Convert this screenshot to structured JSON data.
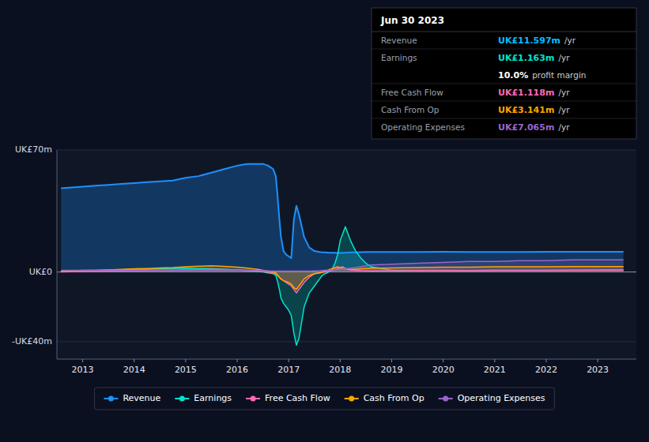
{
  "chart_data": {
    "type": "area",
    "x": [
      2012.58,
      2013.0,
      2013.25,
      2013.5,
      2013.75,
      2014.0,
      2014.25,
      2014.5,
      2014.75,
      2015.0,
      2015.25,
      2015.5,
      2015.75,
      2016.0,
      2016.1,
      2016.2,
      2016.3,
      2016.4,
      2016.5,
      2016.6,
      2016.7,
      2016.75,
      2016.78,
      2016.82,
      2016.85,
      2016.9,
      2016.95,
      2017.0,
      2017.05,
      2017.1,
      2017.15,
      2017.2,
      2017.3,
      2017.4,
      2017.5,
      2017.6,
      2017.65,
      2017.7,
      2017.75,
      2017.8,
      2017.85,
      2017.9,
      2017.95,
      2018.0,
      2018.05,
      2018.1,
      2018.15,
      2018.2,
      2018.3,
      2018.4,
      2018.5,
      2018.6,
      2019.0,
      2019.5,
      2020.0,
      2020.5,
      2021.0,
      2021.5,
      2022.0,
      2022.5,
      2023.0,
      2023.5
    ],
    "series": [
      {
        "name": "Revenue",
        "color": "#1e90ff",
        "values": [
          48,
          49,
          49.5,
          50,
          50.5,
          51,
          51.5,
          52,
          52.5,
          54,
          55,
          57,
          59,
          61,
          61.5,
          62,
          62,
          62,
          62,
          61,
          59,
          55,
          45,
          30,
          20,
          12,
          10,
          9,
          8,
          30,
          38,
          33,
          20,
          14,
          12,
          11.5,
          11.3,
          11.2,
          11.1,
          11.0,
          11.0,
          11.0,
          10.9,
          10.9,
          11.0,
          11.0,
          11.1,
          11.2,
          11.3,
          11.4,
          11.5,
          11.5,
          11.5,
          11.5,
          11.6,
          11.5,
          11.5,
          11.5,
          11.6,
          11.6,
          11.6,
          11.6
        ]
      },
      {
        "name": "Earnings",
        "color": "#00e5cc",
        "values": [
          0.5,
          1.0,
          1.0,
          1.2,
          1.3,
          1.5,
          1.5,
          1.8,
          2.0,
          2.2,
          2.0,
          1.8,
          1.5,
          1.2,
          1.0,
          0.8,
          0.5,
          0.2,
          0,
          -0.5,
          -1,
          -2,
          -5,
          -10,
          -15,
          -18,
          -20,
          -22,
          -25,
          -35,
          -42,
          -38,
          -20,
          -12,
          -8,
          -4,
          -2,
          -1,
          -0.5,
          0.5,
          2,
          5,
          10,
          18,
          22,
          26,
          22,
          18,
          12,
          8,
          5,
          3,
          1.0,
          1.0,
          1.0,
          0.8,
          1.0,
          1.0,
          1.0,
          1.1,
          1.1,
          1.2
        ]
      },
      {
        "name": "Free Cash Flow",
        "color": "#ff69b4",
        "values": [
          0,
          0.3,
          0.4,
          0.5,
          0.6,
          0.7,
          0.8,
          0.9,
          1.0,
          1.2,
          1.3,
          1.5,
          1.4,
          1.2,
          1.1,
          1.0,
          0.8,
          0.5,
          0.2,
          0,
          -0.5,
          -1,
          -2,
          -3,
          -4,
          -5,
          -6,
          -7,
          -8,
          -10,
          -12,
          -10,
          -6,
          -3,
          -1,
          -0.5,
          -0.2,
          0,
          0.3,
          0.5,
          1.0,
          1.5,
          2.0,
          2.5,
          3,
          2,
          1.5,
          1.2,
          1.0,
          0.8,
          0.7,
          0.6,
          0.7,
          0.8,
          0.8,
          0.8,
          0.9,
          1.0,
          1.0,
          1.0,
          1.1,
          1.1
        ]
      },
      {
        "name": "Cash From Op",
        "color": "#ffa500",
        "values": [
          0.5,
          0.8,
          1.0,
          1.2,
          1.5,
          1.8,
          2.0,
          2.3,
          2.5,
          3.0,
          3.3,
          3.5,
          3.2,
          2.8,
          2.5,
          2.2,
          1.8,
          1.5,
          1.0,
          0.5,
          0,
          -0.5,
          -1.5,
          -3,
          -4,
          -5,
          -5.5,
          -6,
          -7,
          -9,
          -10,
          -8,
          -4,
          -2,
          -1,
          -0.5,
          0,
          0.5,
          1,
          1.5,
          2,
          2.5,
          3,
          2.5,
          2,
          1.8,
          1.6,
          1.5,
          1.5,
          1.8,
          2.0,
          2.2,
          2.3,
          2.5,
          2.8,
          2.8,
          3.0,
          3.0,
          3.0,
          3.1,
          3.1,
          3.1
        ]
      },
      {
        "name": "Operating Expenses",
        "color": "#9966cc",
        "values": [
          1,
          1,
          1,
          1,
          1,
          1,
          1,
          1,
          1.1,
          1.2,
          1.2,
          1.2,
          1.2,
          1.1,
          1.0,
          1.0,
          0.9,
          0.8,
          0.7,
          0.6,
          0.5,
          0.5,
          0.5,
          0.5,
          0.5,
          0.5,
          0.5,
          0.5,
          0.5,
          0.5,
          0.5,
          0.5,
          0.5,
          0.5,
          0.6,
          0.7,
          0.8,
          0.9,
          1.0,
          1.1,
          1.2,
          1.3,
          1.4,
          1.5,
          1.6,
          1.8,
          2.0,
          2.2,
          2.5,
          3.0,
          3.5,
          4.0,
          4.5,
          5.0,
          5.5,
          6.0,
          6.0,
          6.5,
          6.5,
          7.0,
          7.0,
          7.0
        ]
      }
    ],
    "xlim": [
      2012.5,
      2023.75
    ],
    "xticks": [
      2013,
      2014,
      2015,
      2016,
      2017,
      2018,
      2019,
      2020,
      2021,
      2022,
      2023
    ],
    "ylim": [
      -50,
      70
    ],
    "yticks": [
      {
        "value": -40,
        "label": "-UK£40m"
      },
      {
        "value": 0,
        "label": "UK£0"
      },
      {
        "value": 70,
        "label": "UK£70m"
      }
    ],
    "grid": true,
    "legend": "bottom",
    "annotations": [
      {
        "text": "Jun 30 2023"
      },
      {
        "label": "Revenue",
        "text": "UK£11.597m",
        "suffix": "/yr",
        "color": "#00bfff"
      },
      {
        "label": "Earnings",
        "text": "UK£1.163m",
        "suffix": "/yr",
        "color": "#00e5cc"
      },
      {
        "text": "10.0%",
        "suffix": "profit margin",
        "color": "#ffffff"
      },
      {
        "label": "Free Cash Flow",
        "text": "UK£1.118m",
        "suffix": "/yr",
        "color": "#ff69b4"
      },
      {
        "label": "Cash From Op",
        "text": "UK£3.141m",
        "suffix": "/yr",
        "color": "#ffa500"
      },
      {
        "label": "Operating Expenses",
        "text": "UK£7.065m",
        "suffix": "/yr",
        "color": "#9966cc"
      }
    ]
  }
}
